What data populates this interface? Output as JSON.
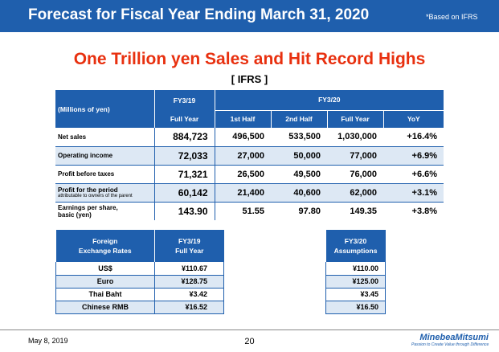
{
  "header": {
    "title": "Forecast for Fiscal Year Ending March 31, 2020",
    "note": "*Based on IFRS"
  },
  "headline": "One Trillion yen Sales and Hit Record Highs",
  "subheadline": "[ IFRS ]",
  "main_table": {
    "units": "(Millions of yen)",
    "fy19_label": "FY3/19",
    "fy19_sub": "Full Year",
    "fy20_label": "FY3/20",
    "fy20_cols": [
      "1st Half",
      "2nd Half",
      "Full Year",
      "YoY"
    ],
    "rows": [
      {
        "label": "Net sales",
        "label_sub": "",
        "fy19": "884,723",
        "h1": "496,500",
        "h2": "533,500",
        "full": "1,030,000",
        "yoy": "+16.4%"
      },
      {
        "label": "Operating income",
        "label_sub": "",
        "fy19": "72,033",
        "h1": "27,000",
        "h2": "50,000",
        "full": "77,000",
        "yoy": "+6.9%"
      },
      {
        "label": "Profit before taxes",
        "label_sub": "",
        "fy19": "71,321",
        "h1": "26,500",
        "h2": "49,500",
        "full": "76,000",
        "yoy": "+6.6%"
      },
      {
        "label": "Profit for the period",
        "label_sub": "attributable to owners of the parent",
        "fy19": "60,142",
        "h1": "21,400",
        "h2": "40,600",
        "full": "62,000",
        "yoy": "+3.1%"
      },
      {
        "label": "Earnings per share,",
        "label_sub": "basic  (yen)",
        "fy19": "143.90",
        "h1": "51.55",
        "h2": "97.80",
        "full": "149.35",
        "yoy": "+3.8%"
      }
    ]
  },
  "fx_table": {
    "header_col1": "Foreign\nExchange Rates",
    "header_col2": "FY3/19\nFull Year",
    "rows": [
      {
        "currency": "US$",
        "value": "¥110.67"
      },
      {
        "currency": "Euro",
        "value": "¥128.75"
      },
      {
        "currency": "Thai Baht",
        "value": "¥3.42"
      },
      {
        "currency": "Chinese RMB",
        "value": "¥16.52"
      }
    ]
  },
  "fx_assumptions": {
    "header": "FY3/20\nAssumptions",
    "values": [
      "¥110.00",
      "¥125.00",
      "¥3.45",
      "¥16.50"
    ]
  },
  "footer": {
    "date": "May 8, 2019",
    "page": "20",
    "logo_name": "MinebeaMitsumi",
    "logo_tagline": "Passion to Create Value through Difference"
  },
  "colors": {
    "brand_blue": "#1f5fad",
    "headline_red": "#e8300f",
    "row_shade": "#dde8f4"
  }
}
